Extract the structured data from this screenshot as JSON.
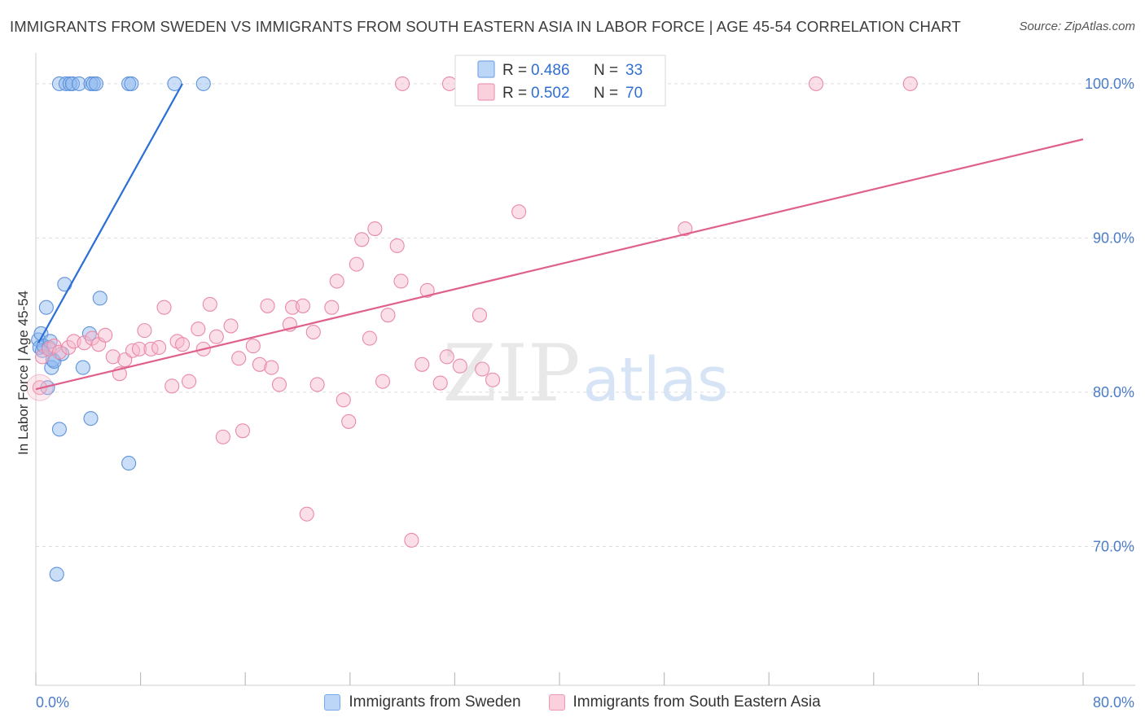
{
  "title": "IMMIGRANTS FROM SWEDEN VS IMMIGRANTS FROM SOUTH EASTERN ASIA IN LABOR FORCE | AGE 45-54 CORRELATION CHART",
  "source": "Source: ZipAtlas.com",
  "watermark": {
    "zip": "ZIP",
    "atlas": "atlas"
  },
  "chart_data": {
    "type": "scatter",
    "title": "IMMIGRANTS FROM SWEDEN VS IMMIGRANTS FROM SOUTH EASTERN ASIA IN LABOR FORCE | AGE 45-54 CORRELATION CHART",
    "xlabel": "",
    "ylabel": "In Labor Force | Age 45-54",
    "xlim": [
      0,
      80
    ],
    "ylim": [
      61,
      102
    ],
    "x_tick_labels": [
      {
        "value": 0,
        "label": "0.0%"
      },
      {
        "value": 80,
        "label": "80.0%"
      }
    ],
    "y_tick_labels": [
      {
        "value": 100,
        "label": "100.0%"
      },
      {
        "value": 90,
        "label": "90.0%"
      },
      {
        "value": 80,
        "label": "80.0%"
      },
      {
        "value": 70,
        "label": "70.0%"
      }
    ],
    "grid": true,
    "legend_position": "top-center",
    "series": [
      {
        "name": "Immigrants from Sweden",
        "color": "#8ab6f0",
        "stroke": "#5f93db",
        "line_color": "#2b6fd4",
        "R": "0.486",
        "N": "33",
        "points": [
          [
            0.2,
            83.4
          ],
          [
            0.3,
            82.9
          ],
          [
            0.4,
            83.8
          ],
          [
            0.5,
            82.7
          ],
          [
            0.6,
            83.0
          ],
          [
            0.8,
            85.5
          ],
          [
            0.9,
            80.3
          ],
          [
            1.0,
            82.9
          ],
          [
            1.1,
            83.3
          ],
          [
            1.2,
            81.6
          ],
          [
            1.3,
            82.1
          ],
          [
            1.4,
            82.0
          ],
          [
            1.6,
            68.2
          ],
          [
            1.8,
            77.6
          ],
          [
            2.0,
            82.5
          ],
          [
            2.2,
            87.0
          ],
          [
            3.6,
            81.6
          ],
          [
            4.1,
            83.8
          ],
          [
            4.2,
            78.3
          ],
          [
            4.9,
            86.1
          ],
          [
            7.1,
            75.4
          ],
          [
            1.8,
            100.0
          ],
          [
            2.3,
            100.0
          ],
          [
            2.6,
            100.0
          ],
          [
            2.8,
            100.0
          ],
          [
            3.3,
            100.0
          ],
          [
            4.2,
            100.0
          ],
          [
            4.4,
            100.0
          ],
          [
            4.6,
            100.0
          ],
          [
            7.1,
            100.0
          ],
          [
            7.3,
            100.0
          ],
          [
            10.6,
            100.0
          ],
          [
            12.8,
            100.0
          ]
        ],
        "trend": {
          "x1": 0.2,
          "y1": 83.2,
          "x2": 11.2,
          "y2": 100.0
        }
      },
      {
        "name": "Immigrants from South Eastern Asia",
        "color": "#f6b8cb",
        "stroke": "#e98aa8",
        "line_color": "#e0608c",
        "R": "0.502",
        "N": "70",
        "points": [
          [
            0.3,
            80.3
          ],
          [
            0.5,
            82.3
          ],
          [
            1.0,
            82.8
          ],
          [
            1.4,
            83.0
          ],
          [
            1.8,
            82.6
          ],
          [
            2.5,
            82.9
          ],
          [
            2.9,
            83.3
          ],
          [
            3.7,
            83.2
          ],
          [
            4.3,
            83.5
          ],
          [
            4.8,
            83.1
          ],
          [
            5.3,
            83.7
          ],
          [
            5.9,
            82.3
          ],
          [
            6.4,
            81.2
          ],
          [
            6.8,
            82.1
          ],
          [
            7.4,
            82.7
          ],
          [
            7.9,
            82.8
          ],
          [
            8.3,
            84.0
          ],
          [
            8.8,
            82.8
          ],
          [
            9.4,
            82.9
          ],
          [
            9.8,
            85.5
          ],
          [
            10.4,
            80.4
          ],
          [
            10.8,
            83.3
          ],
          [
            11.2,
            83.1
          ],
          [
            11.7,
            80.7
          ],
          [
            12.4,
            84.1
          ],
          [
            12.8,
            82.8
          ],
          [
            13.3,
            85.7
          ],
          [
            13.8,
            83.6
          ],
          [
            14.3,
            77.1
          ],
          [
            14.9,
            84.3
          ],
          [
            15.5,
            82.2
          ],
          [
            15.8,
            77.5
          ],
          [
            16.6,
            83.0
          ],
          [
            17.1,
            81.8
          ],
          [
            17.7,
            85.6
          ],
          [
            18.0,
            81.6
          ],
          [
            18.6,
            80.5
          ],
          [
            19.4,
            84.4
          ],
          [
            19.6,
            85.5
          ],
          [
            20.4,
            85.6
          ],
          [
            20.7,
            72.1
          ],
          [
            21.2,
            83.9
          ],
          [
            21.5,
            80.5
          ],
          [
            22.6,
            85.5
          ],
          [
            23.0,
            87.2
          ],
          [
            23.5,
            79.5
          ],
          [
            23.9,
            78.1
          ],
          [
            24.5,
            88.3
          ],
          [
            24.9,
            89.9
          ],
          [
            25.5,
            83.5
          ],
          [
            25.9,
            90.6
          ],
          [
            26.5,
            80.7
          ],
          [
            26.9,
            85.0
          ],
          [
            27.6,
            89.5
          ],
          [
            27.9,
            87.2
          ],
          [
            28.7,
            70.4
          ],
          [
            29.5,
            81.8
          ],
          [
            29.9,
            86.6
          ],
          [
            30.9,
            80.6
          ],
          [
            31.4,
            82.3
          ],
          [
            32.4,
            81.7
          ],
          [
            33.9,
            85.0
          ],
          [
            34.1,
            81.5
          ],
          [
            34.9,
            80.8
          ],
          [
            36.9,
            91.7
          ],
          [
            49.6,
            90.6
          ],
          [
            28.0,
            100.0
          ],
          [
            31.6,
            100.0
          ],
          [
            59.6,
            100.0
          ],
          [
            66.8,
            100.0
          ]
        ],
        "trend": {
          "x1": 0.0,
          "y1": 80.2,
          "x2": 80.0,
          "y2": 96.4
        }
      }
    ]
  }
}
